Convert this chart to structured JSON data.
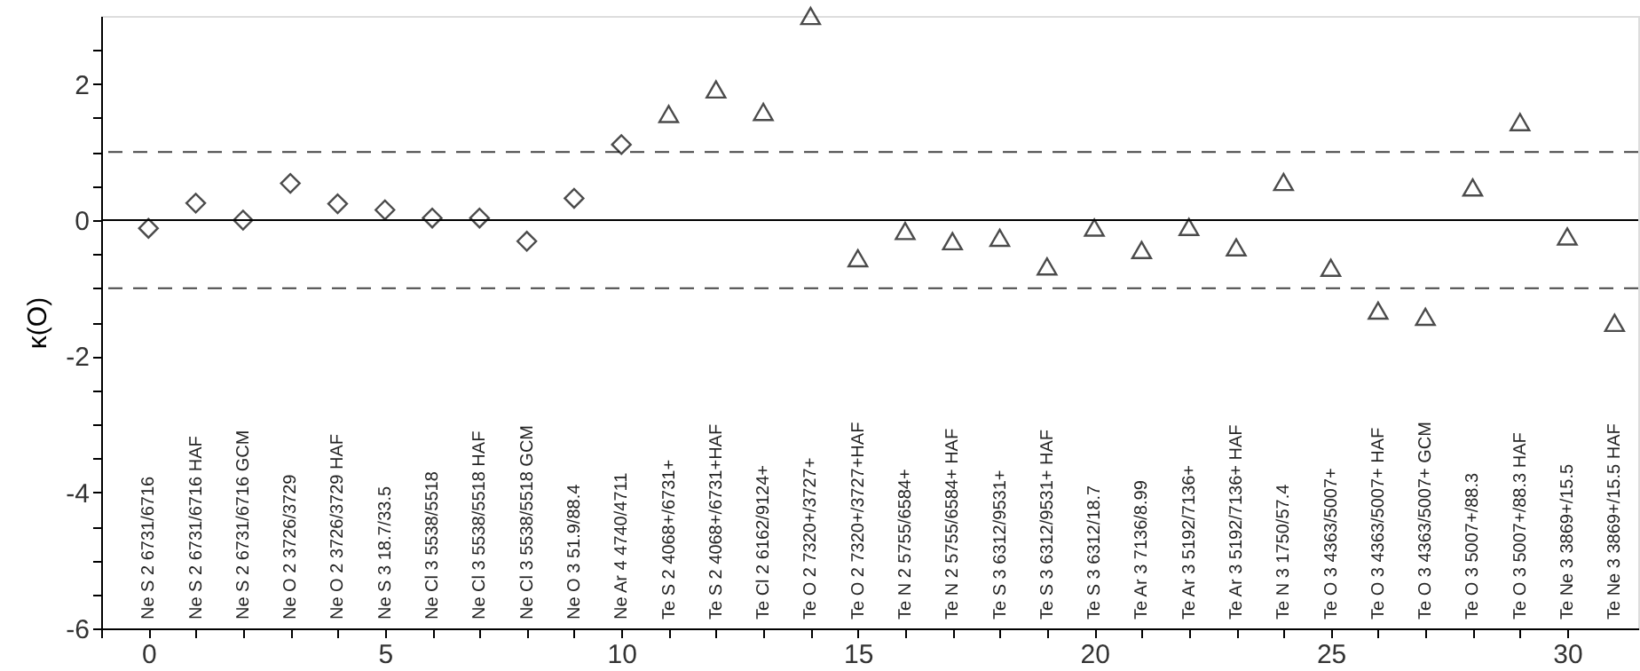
{
  "chart_data": {
    "type": "scatter",
    "ylabel": "κ(O)",
    "series": [
      {
        "color": "#000000",
        "marker": "diamond",
        "x": [
          0,
          1,
          2,
          3,
          4,
          5,
          6,
          7,
          8,
          9,
          10
        ],
        "values": [
          -0.12,
          0.25,
          0.0,
          0.54,
          0.24,
          0.15,
          0.03,
          0.03,
          -0.31,
          0.32,
          1.11
        ]
      },
      {
        "color": "#000000",
        "marker": "triangle",
        "x": [
          11,
          12,
          13,
          14,
          15,
          16,
          17,
          18,
          19,
          20,
          21,
          22,
          23,
          24,
          25,
          26,
          27,
          28,
          29,
          30,
          31
        ],
        "values": [
          1.56,
          1.92,
          1.59,
          3.0,
          -0.56,
          -0.16,
          -0.31,
          -0.26,
          -0.68,
          -0.11,
          -0.44,
          -0.1,
          -0.4,
          0.56,
          -0.7,
          -1.33,
          -1.42,
          0.48,
          1.44,
          -0.24,
          -1.51
        ]
      }
    ],
    "xlim": [
      -1,
      31.5
    ],
    "xticks": [
      {
        "value": -1,
        "label": null
      },
      0,
      {
        "value": 1,
        "label": null
      },
      {
        "value": 2,
        "label": null
      },
      {
        "value": 3,
        "label": null
      },
      {
        "value": 4,
        "label": null
      },
      5,
      {
        "value": 6,
        "label": null
      },
      {
        "value": 7,
        "label": null
      },
      {
        "value": 8,
        "label": null
      },
      {
        "value": 9,
        "label": null
      },
      10,
      {
        "value": 11,
        "label": null
      },
      {
        "value": 12,
        "label": null
      },
      {
        "value": 13,
        "label": null
      },
      {
        "value": 14,
        "label": null
      },
      15,
      {
        "value": 16,
        "label": null
      },
      {
        "value": 17,
        "label": null
      },
      {
        "value": 18,
        "label": null
      },
      {
        "value": 19,
        "label": null
      },
      20,
      {
        "value": 21,
        "label": null
      },
      {
        "value": 22,
        "label": null
      },
      {
        "value": 23,
        "label": null
      },
      {
        "value": 24,
        "label": null
      },
      25,
      {
        "value": 26,
        "label": null
      },
      {
        "value": 27,
        "label": null
      },
      {
        "value": 28,
        "label": null
      },
      {
        "value": 29,
        "label": null
      },
      30
    ],
    "ylim": [
      -6,
      3
    ],
    "yticks": [
      -6,
      {
        "value": -5.5,
        "label": null
      },
      -4,
      {
        "value": -3.5,
        "label": null
      },
      {
        "value": -5,
        "label": null
      },
      {
        "value": -4.5,
        "label": null
      },
      {
        "value": -3,
        "label": null
      },
      {
        "value": -2.5,
        "label": null
      },
      -2,
      {
        "value": -1.5,
        "label": null
      },
      {
        "value": -1,
        "label": null
      },
      {
        "value": -0.5,
        "label": null
      },
      0,
      {
        "value": 0.5,
        "label": null
      },
      {
        "value": 1,
        "label": null
      },
      {
        "value": 1.5,
        "label": null
      },
      2,
      {
        "value": 2.5,
        "label": null
      }
    ],
    "ref_lines": [
      {
        "axis": "y",
        "value": 1,
        "color": "#444444",
        "line_style": "dashed"
      },
      {
        "axis": "y",
        "value": 0,
        "color": "#000000",
        "line_style": "solid"
      },
      {
        "axis": "y",
        "value": -1,
        "color": "#444444",
        "line_style": "dashed"
      }
    ],
    "grid": false,
    "annotations": [
      "Ne S 2 6731/6716",
      "Ne S 2 6731/6716 HAF",
      "Ne S 2 6731/6716 GCM",
      "Ne O 2 3726/3729",
      "Ne O 2 3726/3729 HAF",
      "Ne S 3 18.7/33.5",
      "Ne Cl 3 5538/5518",
      "Ne Cl 3 5538/5518 HAF",
      "Ne Cl 3 5538/5518 GCM",
      "Ne O 3 51.9/88.4",
      "Ne Ar 4 4740/4711",
      "Te S 2 4068+/6731+",
      "Te S 2 4068+/6731+HAF",
      "Te Cl 2 6162/9124+",
      "Te O 2 7320+/3727+",
      "Te O 2 7320+/3727+HAF",
      "Te N 2 5755/6584+",
      "Te N 2 5755/6584+ HAF",
      "Te S 3 6312/9531+",
      "Te S 3 6312/9531+ HAF",
      "Te S 3 6312/18.7",
      "Te Ar 3 7136/8.99",
      "Te Ar 3 5192/7136+",
      "Te Ar 3 5192/7136+ HAF",
      "Te N 3 1750/57.4",
      "Te O 3 4363/5007+",
      "Te O 3 4363/5007+ HAF",
      "Te O 3 4363/5007+ GCM",
      "Te O 3 5007+/88.3",
      "Te O 3 5007+/88.3 HAF",
      "Te Ne 3 3869+/15.5",
      "Te Ne 3 3869+/15.5 HAF"
    ]
  }
}
